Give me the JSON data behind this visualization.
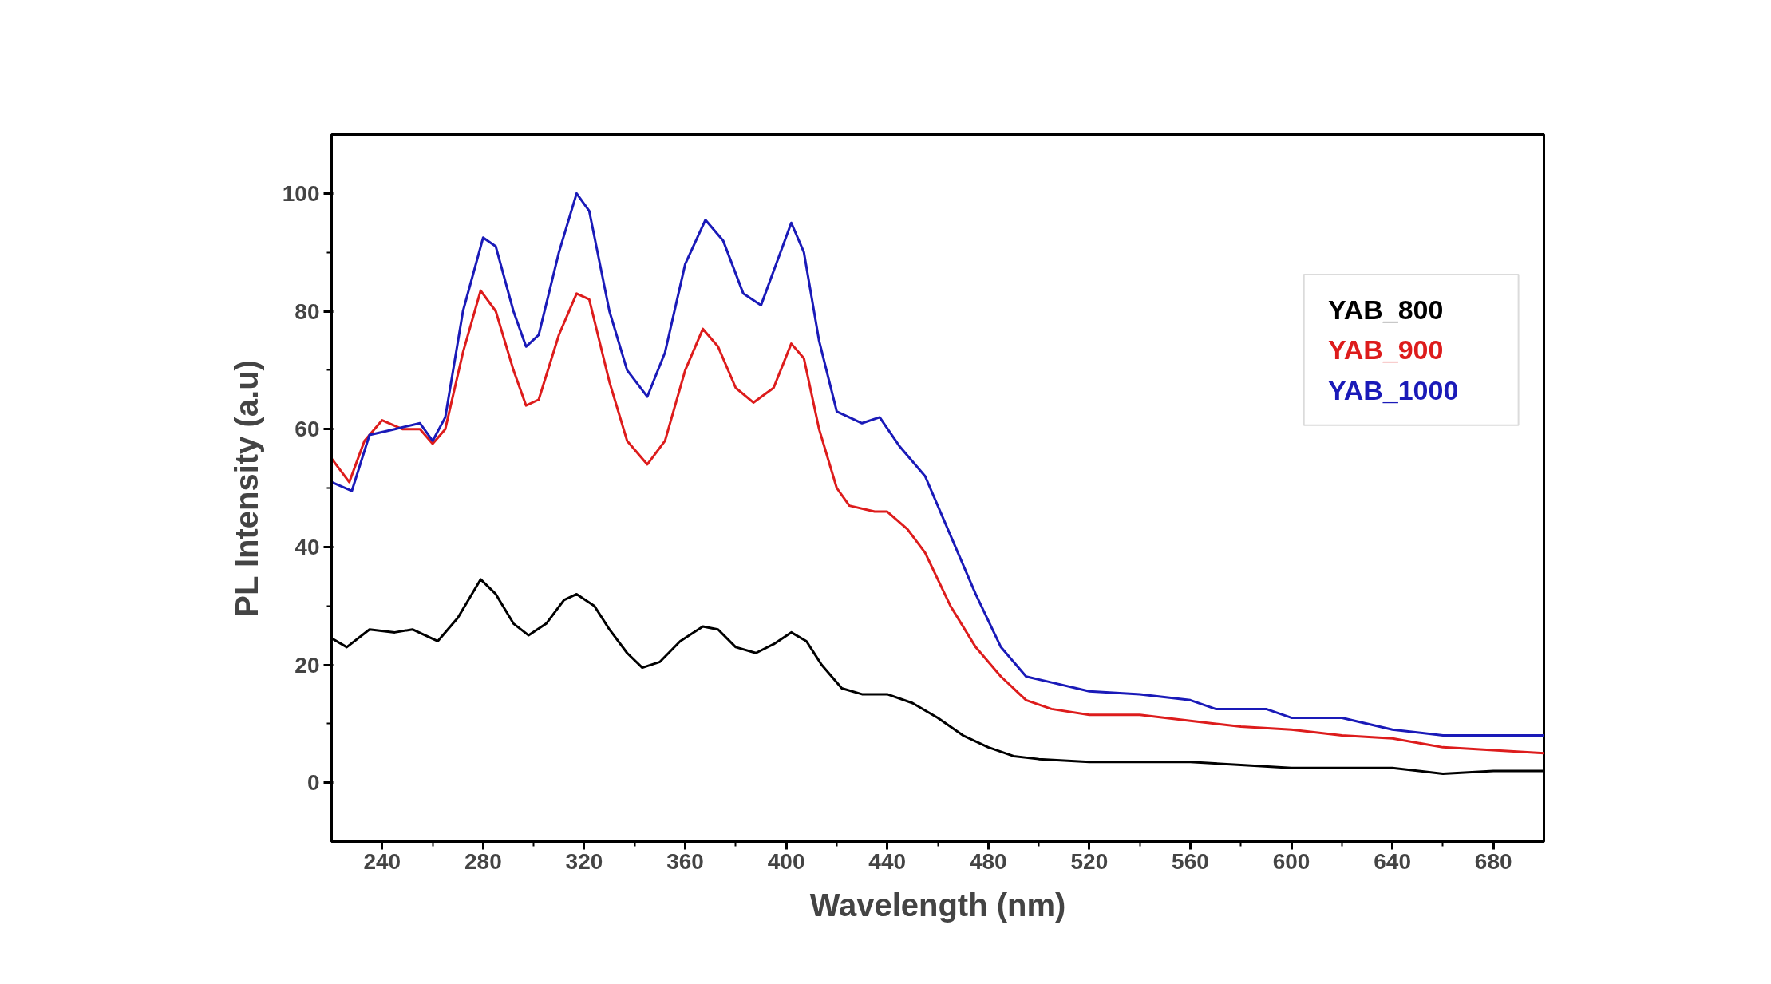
{
  "chart_data": {
    "type": "line",
    "xlabel": "Wavelength (nm)",
    "ylabel": "PL Intensity (a.u)",
    "xlim": [
      220,
      700
    ],
    "ylim": [
      -10,
      110
    ],
    "xticks": [
      240,
      280,
      320,
      360,
      400,
      440,
      480,
      520,
      560,
      600,
      640,
      680
    ],
    "yticks": [
      0,
      20,
      40,
      60,
      80,
      100
    ],
    "grid": false,
    "legend": "top right",
    "line_style": "solid",
    "marker": "none",
    "series": [
      {
        "name": "YAB_800",
        "color": "#000000",
        "x": [
          220,
          226,
          235,
          245,
          252,
          262,
          270,
          279,
          285,
          292,
          298,
          305,
          312,
          317,
          324,
          330,
          337,
          343,
          350,
          358,
          367,
          373,
          380,
          388,
          395,
          402,
          408,
          414,
          422,
          430,
          440,
          450,
          460,
          470,
          480,
          490,
          500,
          520,
          560,
          580,
          600,
          640,
          660,
          680,
          700
        ],
        "values": [
          24.5,
          23,
          26,
          25.5,
          26,
          24,
          28,
          34.5,
          32,
          27,
          25,
          27,
          31,
          32,
          30,
          26,
          22,
          19.5,
          20.5,
          24,
          26.5,
          26,
          23,
          22,
          23.5,
          25.5,
          24,
          20,
          16,
          15,
          15,
          13.5,
          11,
          8,
          6,
          4.5,
          4,
          3.5,
          3.5,
          3,
          2.5,
          2.5,
          1.5,
          2,
          2
        ]
      },
      {
        "name": "YAB_900",
        "color": "#dd1c1c",
        "x": [
          220,
          227,
          233,
          240,
          248,
          255,
          260,
          265,
          272,
          279,
          285,
          292,
          297,
          302,
          310,
          317,
          322,
          330,
          337,
          345,
          352,
          360,
          367,
          373,
          380,
          387,
          395,
          402,
          407,
          413,
          420,
          425,
          435,
          440,
          448,
          455,
          465,
          475,
          485,
          495,
          505,
          520,
          540,
          560,
          580,
          600,
          620,
          640,
          660,
          680,
          700
        ],
        "values": [
          55,
          51,
          58,
          61.5,
          60,
          60,
          57.5,
          60,
          73,
          83.5,
          80,
          70,
          64,
          65,
          76,
          83,
          82,
          68,
          58,
          54,
          58,
          70,
          77,
          74,
          67,
          64.5,
          67,
          74.5,
          72,
          60,
          50,
          47,
          46,
          46,
          43,
          39,
          30,
          23,
          18,
          14,
          12.5,
          11.5,
          11.5,
          10.5,
          9.5,
          9,
          8,
          7.5,
          6,
          5.5,
          5
        ]
      },
      {
        "name": "YAB_1000",
        "color": "#1a1ab8",
        "x": [
          220,
          228,
          235,
          245,
          255,
          260,
          265,
          272,
          280,
          285,
          292,
          297,
          302,
          310,
          317,
          322,
          330,
          337,
          345,
          352,
          360,
          368,
          375,
          383,
          390,
          396,
          402,
          407,
          413,
          420,
          430,
          437,
          445,
          455,
          465,
          475,
          485,
          495,
          505,
          520,
          540,
          560,
          570,
          590,
          600,
          620,
          640,
          660,
          680,
          700
        ],
        "values": [
          51,
          49.5,
          59,
          60,
          61,
          58,
          62,
          80,
          92.5,
          91,
          80,
          74,
          76,
          90,
          100,
          97,
          80,
          70,
          65.5,
          73,
          88,
          95.5,
          92,
          83,
          81,
          88,
          95,
          90,
          75,
          63,
          61,
          62,
          57,
          52,
          42,
          32,
          23,
          18,
          17,
          15.5,
          15,
          14,
          12.5,
          12.5,
          11,
          11,
          9,
          8,
          8,
          8
        ]
      }
    ]
  }
}
